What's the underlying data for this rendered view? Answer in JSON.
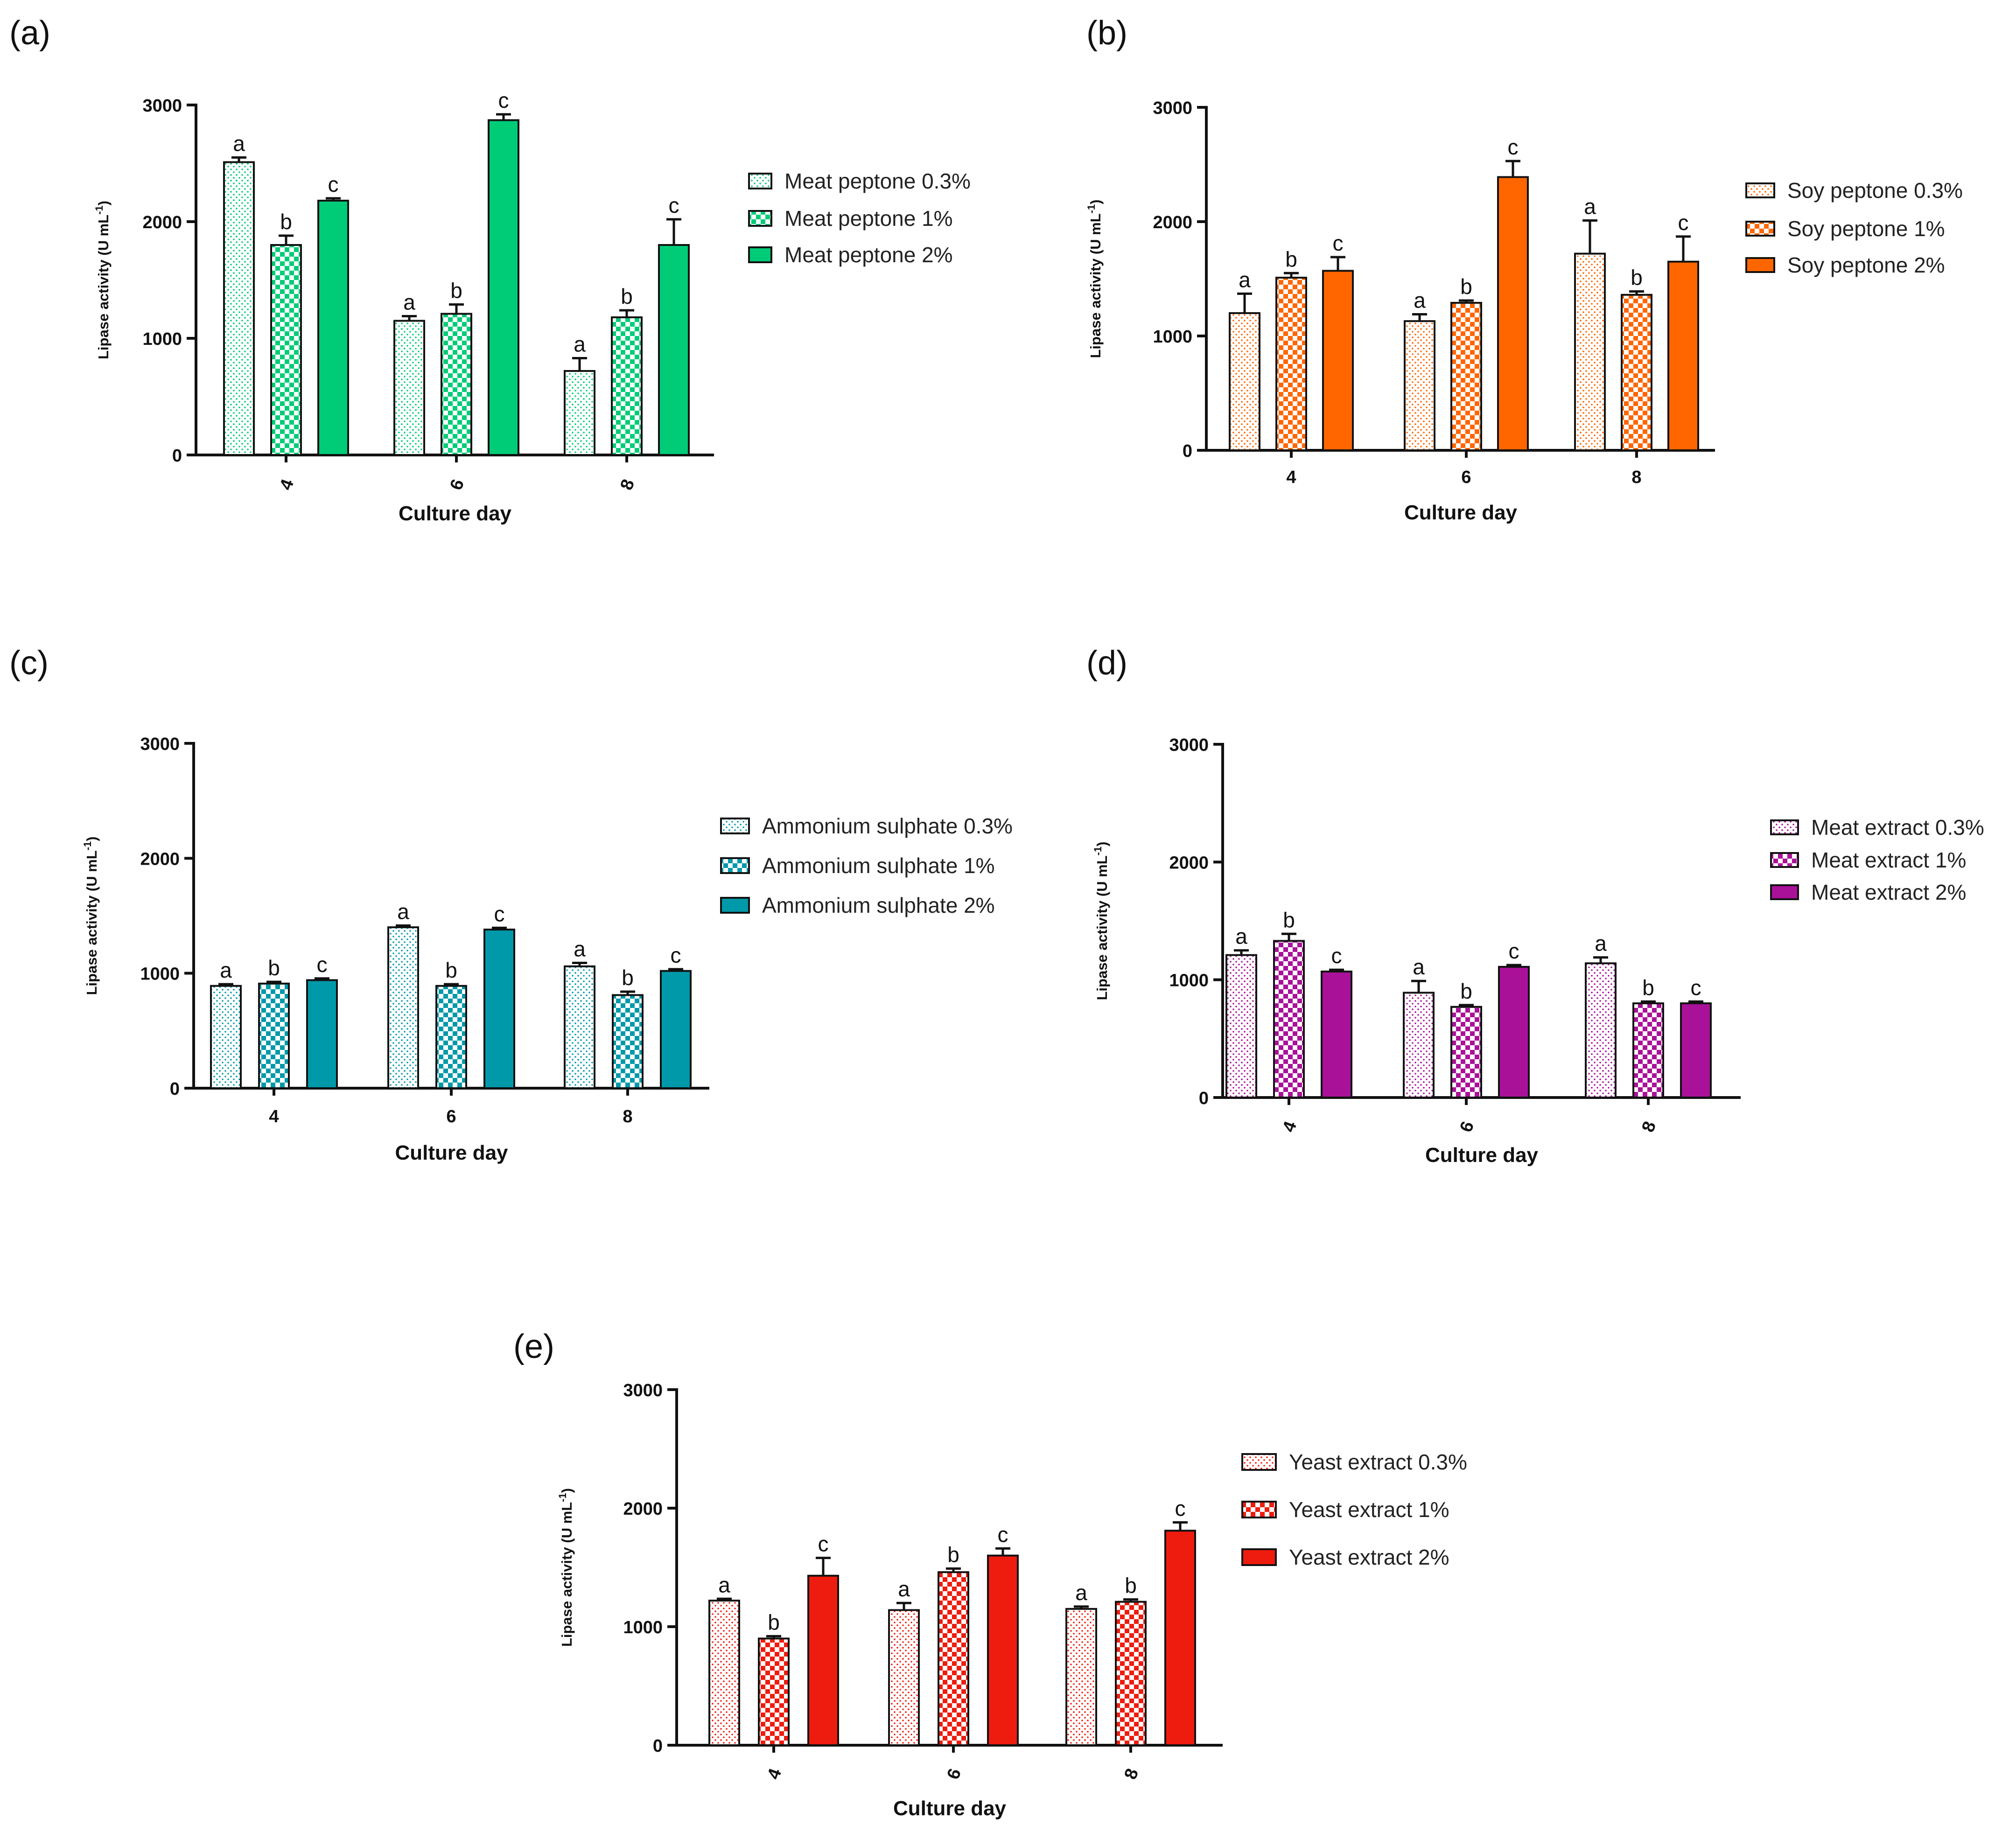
{
  "chart_data": [
    {
      "panel": "(a)",
      "type": "bar",
      "xlabel": "Culture day",
      "ylabel": "Lipase activity (U mL",
      "ylabel_sup": "-1",
      "ylabel_close": ")",
      "ylim": [
        0,
        3000
      ],
      "yticks": [
        "0",
        "1000",
        "2000",
        "3000"
      ],
      "categories": [
        "4",
        "6",
        "8"
      ],
      "rotated_ticks": true,
      "color": "#00cc77",
      "series": [
        {
          "name": "Meat peptone 0.3%",
          "pattern": "dots",
          "values": [
            2510,
            1150,
            720
          ],
          "errors": [
            40,
            40,
            110
          ],
          "letters": [
            "a",
            "a",
            "a"
          ]
        },
        {
          "name": "Meat peptone 1%",
          "pattern": "checker",
          "values": [
            1800,
            1210,
            1180
          ],
          "errors": [
            80,
            80,
            60
          ],
          "letters": [
            "b",
            "b",
            "b"
          ]
        },
        {
          "name": "Meat peptone 2%",
          "pattern": "solid",
          "values": [
            2180,
            2870,
            1800
          ],
          "errors": [
            20,
            50,
            220
          ],
          "letters": [
            "c",
            "c",
            "c"
          ]
        }
      ]
    },
    {
      "panel": "(b)",
      "type": "bar",
      "xlabel": "Culture day",
      "ylabel": "Lipase activity (U mL",
      "ylabel_sup": "-1",
      "ylabel_close": ")",
      "ylim": [
        0,
        3000
      ],
      "yticks": [
        "0",
        "1000",
        "2000",
        "3000"
      ],
      "categories": [
        "4",
        "6",
        "8"
      ],
      "rotated_ticks": false,
      "color": "#ff6600",
      "series": [
        {
          "name": "Soy peptone 0.3%",
          "pattern": "dots",
          "values": [
            1200,
            1130,
            1720
          ],
          "errors": [
            170,
            60,
            290
          ],
          "letters": [
            "a",
            "a",
            "a"
          ]
        },
        {
          "name": "Soy peptone 1%",
          "pattern": "checker",
          "values": [
            1510,
            1290,
            1360
          ],
          "errors": [
            40,
            20,
            30
          ],
          "letters": [
            "b",
            "b",
            "b"
          ]
        },
        {
          "name": "Soy peptone 2%",
          "pattern": "solid",
          "values": [
            1570,
            2390,
            1650
          ],
          "errors": [
            120,
            140,
            220
          ],
          "letters": [
            "c",
            "c",
            "c"
          ]
        }
      ]
    },
    {
      "panel": "(c)",
      "type": "bar",
      "xlabel": "Culture day",
      "ylabel": "Lipase activity (U mL",
      "ylabel_sup": "-1",
      "ylabel_close": ")",
      "ylim": [
        0,
        3000
      ],
      "yticks": [
        "0",
        "1000",
        "2000",
        "3000"
      ],
      "categories": [
        "4",
        "6",
        "8"
      ],
      "rotated_ticks": false,
      "color": "#0099aa",
      "series": [
        {
          "name": "Ammonium sulphate 0.3%",
          "pattern": "dots",
          "values": [
            890,
            1400,
            1060
          ],
          "errors": [
            15,
            15,
            30
          ],
          "letters": [
            "a",
            "a",
            "a"
          ]
        },
        {
          "name": "Ammonium sulphate 1%",
          "pattern": "checker",
          "values": [
            910,
            890,
            810
          ],
          "errors": [
            15,
            15,
            30
          ],
          "letters": [
            "b",
            "b",
            "b"
          ]
        },
        {
          "name": "Ammonium sulphate 2%",
          "pattern": "solid",
          "values": [
            940,
            1380,
            1020
          ],
          "errors": [
            15,
            15,
            15
          ],
          "letters": [
            "c",
            "c",
            "c"
          ]
        }
      ]
    },
    {
      "panel": "(d)",
      "type": "bar",
      "xlabel": "Culture day",
      "ylabel": "Lipase activity (U mL",
      "ylabel_sup": "-1",
      "ylabel_close": ")",
      "ylim": [
        0,
        3000
      ],
      "yticks": [
        "0",
        "1000",
        "2000",
        "3000"
      ],
      "categories": [
        "4",
        "6",
        "8"
      ],
      "rotated_ticks": true,
      "color": "#aa1199",
      "series": [
        {
          "name": "Meat extract 0.3%",
          "pattern": "dots",
          "values": [
            1210,
            890,
            1140
          ],
          "errors": [
            40,
            100,
            50
          ],
          "letters": [
            "a",
            "a",
            "a"
          ]
        },
        {
          "name": "Meat extract 1%",
          "pattern": "checker",
          "values": [
            1330,
            770,
            800
          ],
          "errors": [
            60,
            15,
            15
          ],
          "letters": [
            "b",
            "b",
            "b"
          ]
        },
        {
          "name": "Meat extract 2%",
          "pattern": "solid",
          "values": [
            1070,
            1110,
            800
          ],
          "errors": [
            15,
            15,
            15
          ],
          "letters": [
            "c",
            "c",
            "c"
          ]
        }
      ]
    },
    {
      "panel": "(e)",
      "type": "bar",
      "xlabel": "Culture day",
      "ylabel": "Lipase activity (U mL",
      "ylabel_sup": "-1",
      "ylabel_close": ")",
      "ylim": [
        0,
        3000
      ],
      "yticks": [
        "0",
        "1000",
        "2000",
        "3000"
      ],
      "categories": [
        "4",
        "6",
        "8"
      ],
      "rotated_ticks": true,
      "color": "#ee1c0e",
      "series": [
        {
          "name": "Yeast extract 0.3%",
          "pattern": "dots",
          "values": [
            1220,
            1140,
            1150
          ],
          "errors": [
            15,
            60,
            20
          ],
          "letters": [
            "a",
            "a",
            "a"
          ]
        },
        {
          "name": "Yeast extract 1%",
          "pattern": "checker",
          "values": [
            900,
            1460,
            1210
          ],
          "errors": [
            20,
            30,
            20
          ],
          "letters": [
            "b",
            "b",
            "b"
          ]
        },
        {
          "name": "Yeast extract 2%",
          "pattern": "solid",
          "values": [
            1430,
            1600,
            1810
          ],
          "errors": [
            150,
            60,
            70
          ],
          "letters": [
            "c",
            "c",
            "c"
          ]
        }
      ]
    }
  ]
}
